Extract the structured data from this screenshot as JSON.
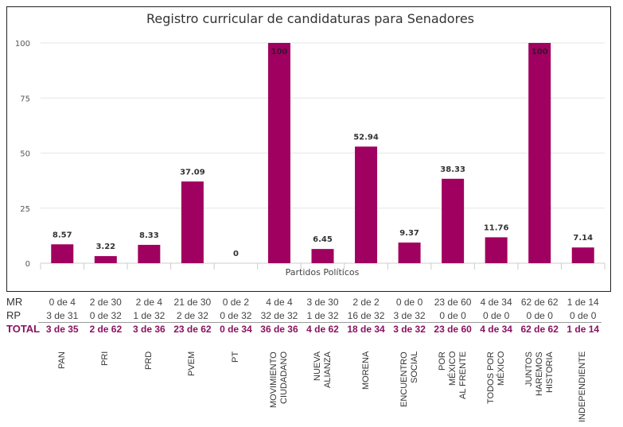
{
  "chart_data": {
    "type": "bar",
    "title": "Registro curricular de candidaturas para Senadores",
    "xlabel": "Partidos Políticos",
    "ylabel": "",
    "ylim": [
      0,
      100
    ],
    "yticks": [
      0,
      25,
      50,
      75,
      100
    ],
    "grid": true,
    "bar_color": "#a0005f",
    "categories": [
      "PAN",
      "PRI",
      "PRD",
      "PVEM",
      "PT",
      "MOVIMIENTO CIUDADANO",
      "NUEVA ALIANZA",
      "MORENA",
      "ENCUENTRO SOCIAL",
      "POR MÉXICO AL FRENTE",
      "TODOS POR MÉXICO",
      "JUNTOS HAREMOS HISTORIA",
      "INDEPENDIENTE"
    ],
    "values": [
      8.57,
      3.22,
      8.33,
      37.09,
      0,
      100,
      6.45,
      52.94,
      9.37,
      38.33,
      11.76,
      100,
      7.14
    ]
  },
  "table": {
    "rows": [
      {
        "label": "MR",
        "values": [
          "0 de 4",
          "2 de 30",
          "2 de 4",
          "21 de 30",
          "0 de 2",
          "4 de 4",
          "3 de 30",
          "2 de 2",
          "0 de 0",
          "23 de 60",
          "4 de 34",
          "62 de 62",
          "1 de 14"
        ]
      },
      {
        "label": "RP",
        "values": [
          "3 de 31",
          "0 de 32",
          "1 de 32",
          "2 de 32",
          "0 de 32",
          "32 de 32",
          "1 de 32",
          "16 de 32",
          "3 de 32",
          "0 de 0",
          "0 de 0",
          "0 de 0",
          "0 de 0"
        ]
      },
      {
        "label": "TOTAL",
        "values": [
          "3 de 35",
          "2 de 62",
          "3 de 36",
          "23 de 62",
          "0 de 34",
          "36 de 36",
          "4 de 62",
          "18 de 34",
          "3 de 32",
          "23 de 60",
          "4 de 34",
          "62 de 62",
          "1 de 14"
        ]
      }
    ],
    "party_labels": [
      "PAN",
      "PRI",
      "PRD",
      "PVEM",
      "PT",
      "MOVIMIENTO\nCIUDADANO",
      "NUEVA\nALIANZA",
      "MORENA",
      "ENCUENTRO\nSOCIAL",
      "POR\nMÉXICO\nAL FRENTE",
      "TODOS POR\nMÉXICO",
      "JUNTOS\nHAREMOS\nHISTORIA",
      "INDEPENDIENTE"
    ]
  }
}
